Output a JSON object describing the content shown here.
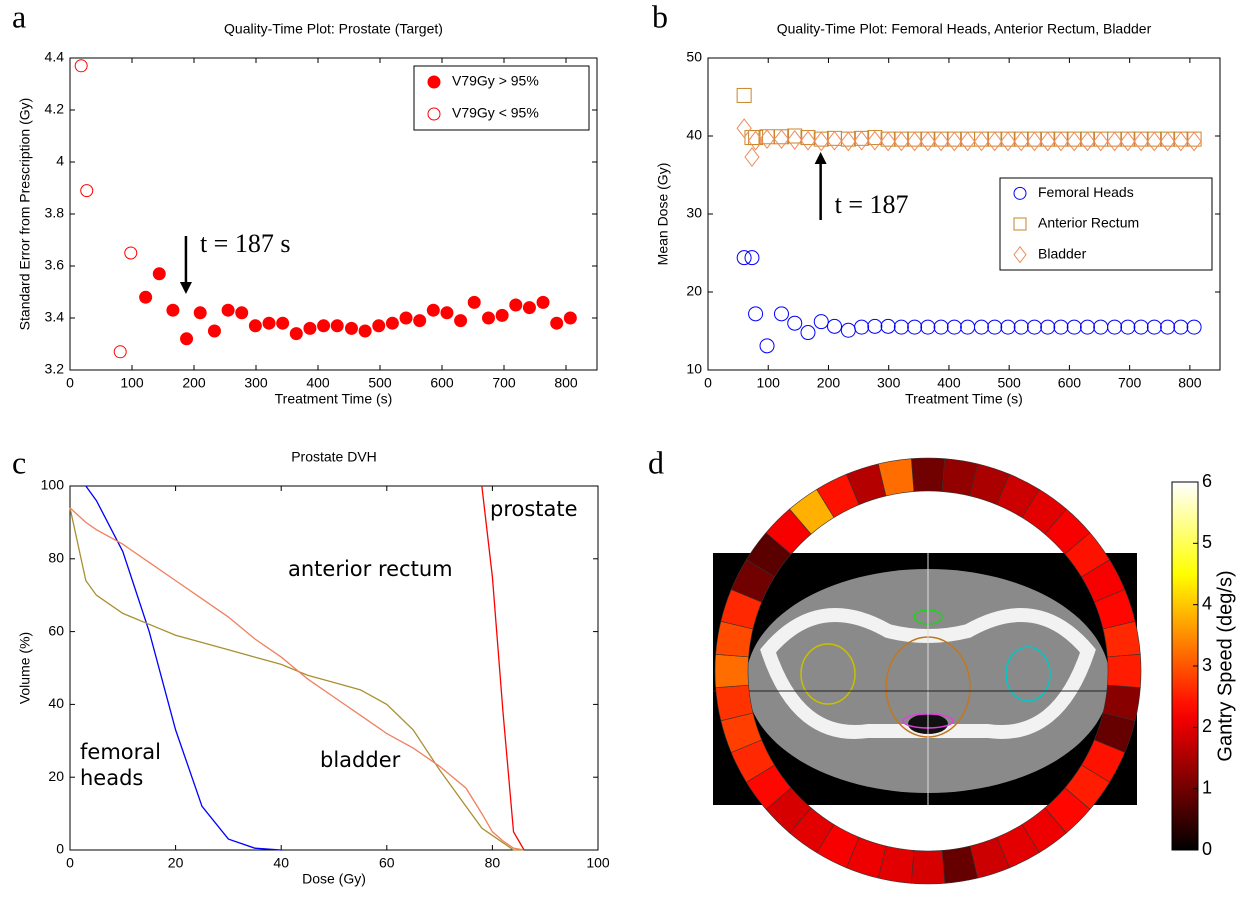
{
  "chart_data": [
    {
      "panel": "a",
      "type": "scatter",
      "title": "Quality-Time Plot: Prostate (Target)",
      "x_label": "Treatment Time (s)",
      "y_label": "Standard Error from Prescription (Gy)",
      "xlim": [
        0,
        850
      ],
      "ylim": [
        3.2,
        4.4
      ],
      "xticks": [
        0,
        100,
        200,
        300,
        400,
        500,
        600,
        700,
        800
      ],
      "yticks": [
        3.2,
        3.4,
        3.6,
        3.8,
        4,
        4.2,
        4.4
      ],
      "legend": "upper right",
      "annotation": {
        "text": "t = 187 s",
        "x": 187
      },
      "series": [
        {
          "name": "V79Gy > 95%",
          "color": "#ff0000",
          "marker": "filled-circle",
          "x": [
            122,
            144,
            166,
            188,
            210,
            233,
            255,
            277,
            299,
            321,
            343,
            365,
            387,
            409,
            431,
            454,
            476,
            498,
            520,
            542,
            564,
            586,
            608,
            630,
            652,
            675,
            697,
            719,
            741,
            763,
            785,
            807
          ],
          "values": [
            3.48,
            3.57,
            3.43,
            3.32,
            3.42,
            3.35,
            3.43,
            3.42,
            3.37,
            3.38,
            3.38,
            3.34,
            3.36,
            3.37,
            3.37,
            3.36,
            3.35,
            3.37,
            3.38,
            3.4,
            3.39,
            3.43,
            3.42,
            3.39,
            3.46,
            3.4,
            3.41,
            3.45,
            3.44,
            3.46,
            3.38,
            3.4
          ]
        },
        {
          "name": "V79Gy < 95%",
          "color": "#ff0000",
          "marker": "open-circle",
          "x": [
            18,
            27,
            81,
            98
          ],
          "values": [
            4.37,
            3.89,
            3.27,
            3.65
          ]
        }
      ]
    },
    {
      "panel": "b",
      "type": "scatter",
      "title": "Quality-Time Plot: Femoral Heads, Anterior Rectum, Bladder",
      "x_label": "Treatment Time (s)",
      "y_label": "Mean Dose (Gy)",
      "xlim": [
        0,
        850
      ],
      "ylim": [
        10,
        50
      ],
      "xticks": [
        0,
        100,
        200,
        300,
        400,
        500,
        600,
        700,
        800
      ],
      "yticks": [
        10,
        20,
        30,
        40,
        50
      ],
      "legend": "right",
      "annotation": {
        "text": "t = 187",
        "x": 187
      },
      "x": [
        60,
        73,
        79,
        98,
        122,
        144,
        166,
        188,
        210,
        233,
        255,
        277,
        299,
        321,
        343,
        365,
        387,
        409,
        431,
        454,
        476,
        498,
        520,
        542,
        564,
        586,
        608,
        630,
        652,
        675,
        697,
        719,
        741,
        763,
        785,
        807
      ],
      "series": [
        {
          "name": "Femoral Heads",
          "color": "#0000ff",
          "marker": "open-circle",
          "values": [
            24.4,
            24.4,
            17.2,
            13.1,
            17.2,
            16.0,
            14.8,
            16.2,
            15.6,
            15.1,
            15.5,
            15.6,
            15.6,
            15.5,
            15.5,
            15.5,
            15.5,
            15.5,
            15.5,
            15.5,
            15.5,
            15.5,
            15.5,
            15.5,
            15.5,
            15.5,
            15.5,
            15.5,
            15.5,
            15.5,
            15.5,
            15.5,
            15.5,
            15.5,
            15.5,
            15.5
          ]
        },
        {
          "name": "Anterior Rectum",
          "color": "#c8862a",
          "marker": "open-square",
          "values": [
            45.2,
            39.8,
            39.8,
            39.9,
            39.9,
            40.0,
            39.8,
            39.6,
            39.7,
            39.6,
            39.7,
            39.8,
            39.6,
            39.6,
            39.6,
            39.6,
            39.6,
            39.6,
            39.6,
            39.6,
            39.6,
            39.6,
            39.6,
            39.6,
            39.6,
            39.6,
            39.6,
            39.6,
            39.6,
            39.6,
            39.6,
            39.6,
            39.6,
            39.6,
            39.6,
            39.6
          ]
        },
        {
          "name": "Bladder",
          "color": "#f08a5a",
          "marker": "open-diamond",
          "values": [
            41.0,
            37.3,
            39.4,
            39.6,
            39.6,
            39.5,
            39.4,
            39.3,
            39.4,
            39.3,
            39.4,
            39.4,
            39.3,
            39.3,
            39.3,
            39.3,
            39.3,
            39.3,
            39.3,
            39.3,
            39.3,
            39.3,
            39.3,
            39.3,
            39.3,
            39.3,
            39.3,
            39.3,
            39.3,
            39.3,
            39.3,
            39.3,
            39.3,
            39.3,
            39.3,
            39.3
          ]
        }
      ]
    },
    {
      "panel": "c",
      "type": "line",
      "title": "Prostate DVH",
      "x_label": "Dose (Gy)",
      "y_label": "Volume (%)",
      "xlim": [
        0,
        100
      ],
      "ylim": [
        0,
        100
      ],
      "xticks": [
        0,
        20,
        40,
        60,
        80,
        100
      ],
      "yticks": [
        0,
        20,
        40,
        60,
        80,
        100
      ],
      "x": [
        0,
        3,
        5,
        10,
        15,
        20,
        25,
        30,
        35,
        40,
        45,
        50,
        55,
        60,
        65,
        70,
        75,
        78,
        80,
        82,
        84,
        86
      ],
      "series": [
        {
          "name": "femoral heads",
          "color": "#0000ff",
          "values": [
            null,
            100,
            96,
            82,
            60,
            33,
            12,
            3,
            0.5,
            0,
            null,
            null,
            null,
            null,
            null,
            null,
            null,
            null,
            null,
            null,
            null,
            null
          ]
        },
        {
          "name": "anterior rectum",
          "color": "#a89030",
          "values": [
            94,
            74,
            70,
            65,
            62,
            59,
            57,
            55,
            53,
            51,
            48,
            46,
            44,
            40,
            33,
            22,
            12,
            6,
            4,
            2,
            0,
            0
          ]
        },
        {
          "name": "bladder",
          "color": "#f08060",
          "values": [
            94,
            90,
            88,
            84,
            79,
            74,
            69,
            64,
            58,
            53,
            47,
            42,
            37,
            32,
            28,
            23,
            17,
            10,
            5,
            2.5,
            0.5,
            0
          ]
        },
        {
          "name": "prostate",
          "color": "#ff0000",
          "values": [
            null,
            null,
            null,
            null,
            null,
            null,
            null,
            null,
            null,
            null,
            null,
            null,
            null,
            null,
            null,
            null,
            null,
            100,
            75,
            38,
            5,
            0
          ]
        }
      ]
    },
    {
      "panel": "d",
      "type": "ring",
      "colorbar_label": "Gantry Speed (deg/s)",
      "colormap": "hot",
      "clim": [
        0,
        6
      ],
      "cticks": [
        0,
        1,
        2,
        3,
        4,
        5,
        6
      ],
      "values": [
        1.0,
        1.3,
        1.5,
        1.8,
        2.0,
        2.2,
        2.4,
        2.2,
        2.3,
        2.6,
        2.5,
        1.2,
        0.9,
        2.4,
        2.5,
        2.3,
        2.1,
        2.0,
        1.8,
        0.9,
        1.9,
        2.0,
        2.1,
        2.2,
        2.0,
        1.9,
        2.3,
        2.6,
        2.8,
        2.7,
        3.2,
        2.9,
        2.6,
        1.0,
        0.8,
        2.2,
        3.8,
        2.4,
        1.6,
        3.2
      ]
    }
  ]
}
